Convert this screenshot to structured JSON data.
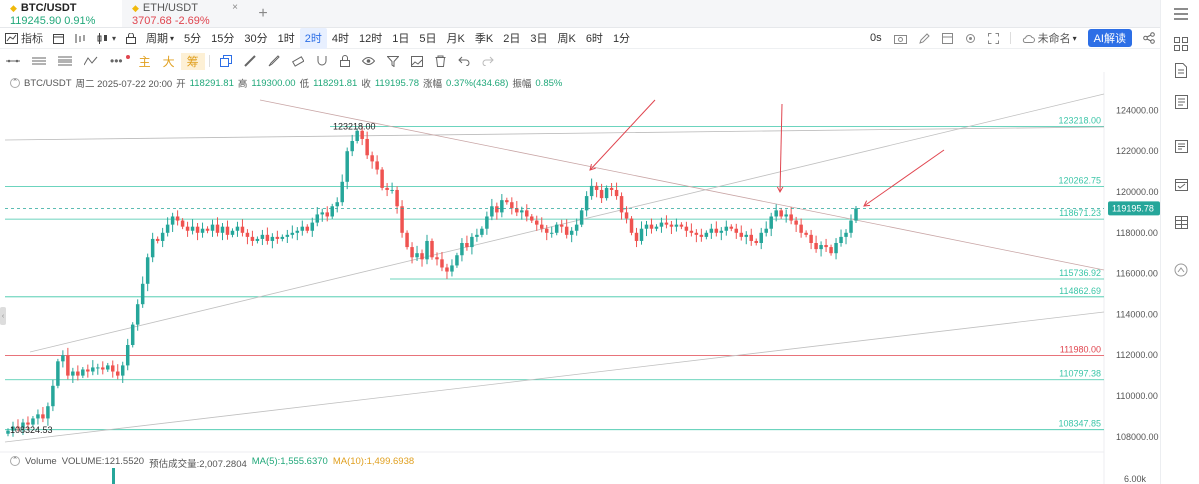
{
  "tabs": [
    {
      "symbol": "BTC/USDT",
      "price": "119245.90",
      "change": "0.91%",
      "direction": "up",
      "active": true
    },
    {
      "symbol": "ETH/USDT",
      "price": "3707.68",
      "change": "-2.69%",
      "direction": "down",
      "active": false
    }
  ],
  "add_tab_label": "+",
  "close_label": "×",
  "toolbar": {
    "indicator_label": "指标",
    "period_label": "周期",
    "intervals": [
      "5分",
      "15分",
      "30分",
      "1时",
      "2时",
      "4时",
      "12时",
      "1日",
      "5日",
      "月K",
      "季K",
      "2日",
      "3日",
      "周K",
      "6时",
      "1分"
    ],
    "selected_interval": "2时",
    "timer_label": "0s",
    "unnamed_label": "未命名",
    "ai_label": "AI解读"
  },
  "toolbar2": {
    "main_label": "主",
    "big_label": "大",
    "chip_label": "筹"
  },
  "info": {
    "symbol": "BTC/USDT",
    "datetime": "周二 2025-07-22 20:00",
    "open_label": "开",
    "open": "118291.81",
    "high_label": "高",
    "high": "119300.00",
    "low_label": "低",
    "low": "118291.81",
    "close_label": "收",
    "close": "119195.78",
    "change_label": "涨幅",
    "change": "0.37%(434.68)",
    "amplitude_label": "振幅",
    "amplitude": "0.85%"
  },
  "volume_info": {
    "label": "Volume",
    "volume": "VOLUME:121.5520",
    "forecast": "预估成交量:2,007.2804",
    "ma5": "MA(5):1,555.6370",
    "ma10": "MA(10):1,499.6938"
  },
  "chart_data": {
    "type": "candlestick",
    "y_axis_labels": [
      "124000.00",
      "122000.00",
      "120000.00",
      "118000.00",
      "116000.00",
      "114000.00",
      "112000.00",
      "110000.00",
      "108000.00"
    ],
    "ylim": [
      107500,
      125000
    ],
    "current_price": "119195.78",
    "high_marker": "123218.00",
    "low_marker": "108324.53",
    "horizontal_levels": [
      {
        "value": 123218.0,
        "label": "123218.00",
        "color": "#3cc6a8"
      },
      {
        "value": 120262.75,
        "label": "120262.75",
        "color": "#3cc6a8"
      },
      {
        "value": 118671.23,
        "label": "118671.23",
        "color": "#3cc6a8"
      },
      {
        "value": 115736.92,
        "label": "115736.92",
        "color": "#3cc6a8"
      },
      {
        "value": 114862.69,
        "label": "114862.69",
        "color": "#3cc6a8"
      },
      {
        "value": 111980.0,
        "label": "111980.00",
        "color": "#e0454f"
      },
      {
        "value": 110797.38,
        "label": "110797.38",
        "color": "#3cc6a8"
      },
      {
        "value": 108347.85,
        "label": "108347.85",
        "color": "#3cc6a8"
      }
    ],
    "volume_axis_label": "6.00k",
    "closes": [
      108300,
      108500,
      108450,
      108700,
      108600,
      108900,
      109100,
      108900,
      109500,
      110500,
      111700,
      112000,
      111000,
      111200,
      111000,
      111300,
      111200,
      111400,
      111400,
      111300,
      111500,
      111200,
      111000,
      111500,
      112500,
      113500,
      114500,
      115500,
      116800,
      117700,
      117600,
      118000,
      118400,
      118800,
      118600,
      118300,
      118100,
      118300,
      118000,
      118200,
      118100,
      118400,
      118000,
      118300,
      117900,
      118100,
      118300,
      118000,
      117800,
      117600,
      117700,
      117900,
      117600,
      117800,
      117700,
      117800,
      117900,
      118000,
      118100,
      118300,
      118100,
      118500,
      118900,
      119000,
      118800,
      119300,
      119500,
      120500,
      122000,
      122500,
      123000,
      122600,
      121800,
      121500,
      121100,
      120200,
      120100,
      120100,
      119300,
      118000,
      117300,
      116800,
      117000,
      116700,
      117600,
      116800,
      116700,
      116300,
      116100,
      116400,
      116900,
      117500,
      117300,
      117800,
      117900,
      118200,
      118800,
      119300,
      119000,
      119600,
      119500,
      119200,
      119000,
      119100,
      118800,
      118600,
      118400,
      118200,
      118000,
      118000,
      118400,
      118300,
      117900,
      118100,
      118400,
      119100,
      119800,
      120300,
      120100,
      119700,
      120200,
      120100,
      119800,
      119000,
      118700,
      118000,
      117600,
      118200,
      118400,
      118200,
      118300,
      118500,
      118400,
      118300,
      118400,
      118300,
      118100,
      118000,
      117900,
      117800,
      118000,
      118200,
      118000,
      118100,
      118300,
      118200,
      118000,
      117800,
      117900,
      117600,
      117500,
      118000,
      118200,
      118800,
      119100,
      118800,
      118900,
      118600,
      118400,
      118000,
      117900,
      117500,
      117200,
      117400,
      117300,
      117000,
      117500,
      117800,
      118000,
      118600,
      119195
    ]
  }
}
